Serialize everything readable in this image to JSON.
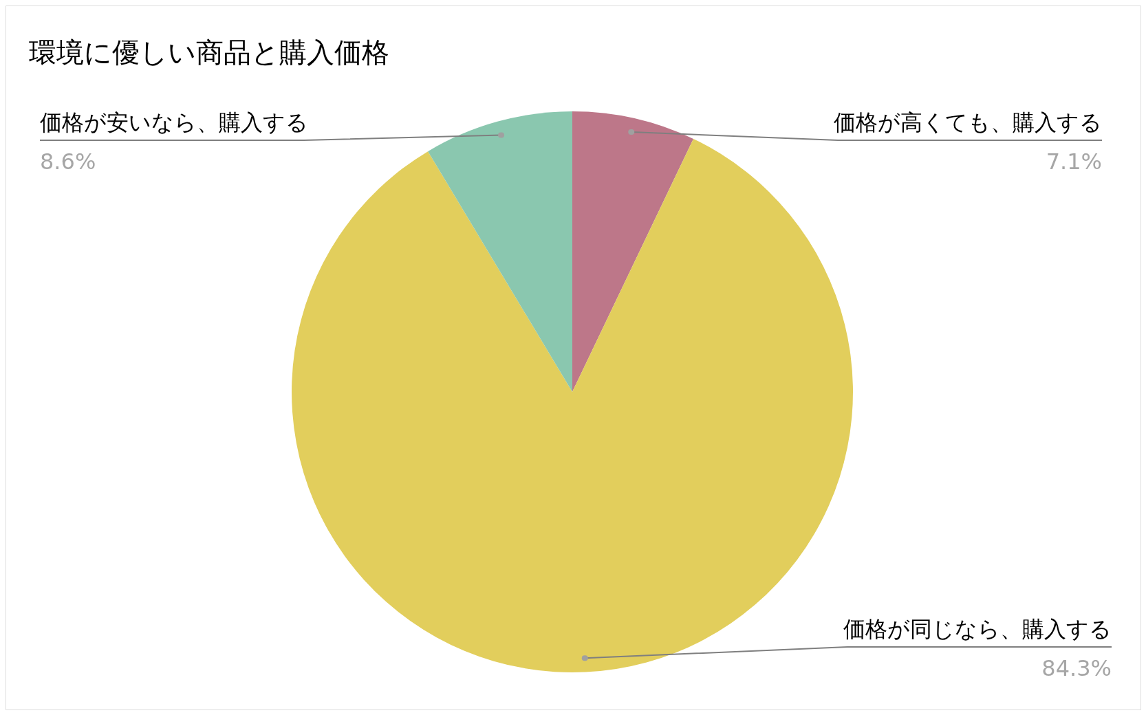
{
  "chart_data": {
    "type": "pie",
    "title": "環境に優しい商品と購入価格",
    "categories": [
      "価格が高くても、購入する",
      "価格が同じなら、購入する",
      "価格が安いなら、購入する"
    ],
    "values": [
      7.1,
      84.3,
      8.6
    ],
    "colors": [
      "#bd7789",
      "#e2ce5c",
      "#8ac7af"
    ],
    "value_labels": [
      "7.1%",
      "84.3%",
      "8.6%"
    ]
  }
}
